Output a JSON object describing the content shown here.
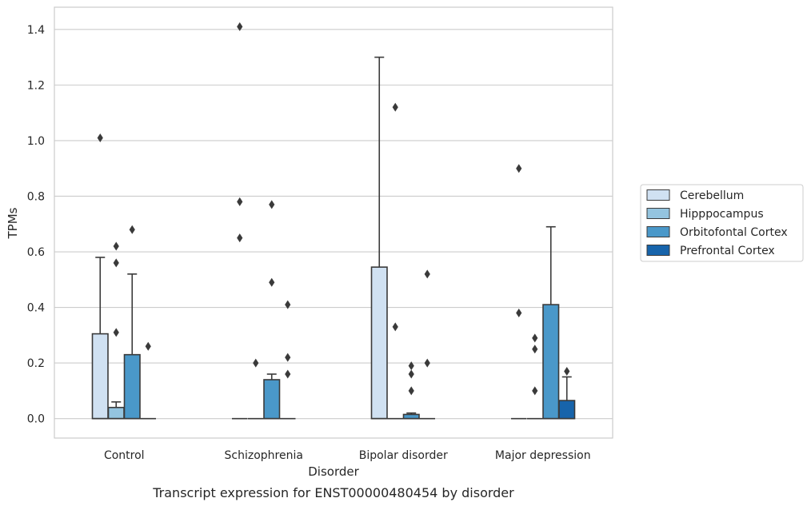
{
  "chart_data": {
    "type": "boxplot",
    "caption": "Transcript expression for ENST00000480454 by disorder",
    "xlabel": "Disorder",
    "ylabel": "TPMs",
    "ylim": [
      -0.07,
      1.48
    ],
    "yticks": [
      0.0,
      0.2,
      0.4,
      0.6,
      0.8,
      1.0,
      1.2,
      1.4
    ],
    "ytick_labels": [
      "0.0",
      "0.2",
      "0.4",
      "0.6",
      "0.8",
      "1.0",
      "1.2",
      "1.4"
    ],
    "grid": "horizontal",
    "legend_position": "right",
    "categories": [
      "Control",
      "Schizophrenia",
      "Bipolar disorder",
      "Major depression"
    ],
    "series": [
      {
        "name": "Cerebellum",
        "color": "#d0e1f2",
        "boxes": [
          {
            "q1": 0.0,
            "median": 0.0,
            "q3": 0.305,
            "whisker_low": 0.0,
            "whisker_high": 0.58,
            "outliers": [
              1.01
            ]
          },
          {
            "q1": 0.0,
            "median": 0.0,
            "q3": 0.0,
            "whisker_low": 0.0,
            "whisker_high": 0.0,
            "outliers": [
              1.41,
              0.78,
              0.65
            ]
          },
          {
            "q1": 0.0,
            "median": 0.0,
            "q3": 0.545,
            "whisker_low": 0.0,
            "whisker_high": 1.3,
            "outliers": []
          },
          {
            "q1": 0.0,
            "median": 0.0,
            "q3": 0.0,
            "whisker_low": 0.0,
            "whisker_high": 0.0,
            "outliers": [
              0.9,
              0.38
            ]
          }
        ]
      },
      {
        "name": "Hipppocampus",
        "color": "#94c4df",
        "boxes": [
          {
            "q1": 0.0,
            "median": 0.0,
            "q3": 0.04,
            "whisker_low": 0.0,
            "whisker_high": 0.06,
            "outliers": [
              0.62,
              0.56,
              0.31
            ]
          },
          {
            "q1": 0.0,
            "median": 0.0,
            "q3": 0.0,
            "whisker_low": 0.0,
            "whisker_high": 0.0,
            "outliers": [
              0.2
            ]
          },
          {
            "q1": 0.0,
            "median": 0.0,
            "q3": 0.0,
            "whisker_low": 0.0,
            "whisker_high": 0.0,
            "outliers": [
              1.12,
              0.33
            ]
          },
          {
            "q1": 0.0,
            "median": 0.0,
            "q3": 0.0,
            "whisker_low": 0.0,
            "whisker_high": 0.0,
            "outliers": [
              0.29,
              0.25,
              0.1
            ]
          }
        ]
      },
      {
        "name": "Orbitofontal Cortex",
        "color": "#4a98c9",
        "boxes": [
          {
            "q1": 0.0,
            "median": 0.0,
            "q3": 0.23,
            "whisker_low": 0.0,
            "whisker_high": 0.52,
            "outliers": [
              0.68
            ]
          },
          {
            "q1": 0.0,
            "median": 0.0,
            "q3": 0.14,
            "whisker_low": 0.0,
            "whisker_high": 0.16,
            "outliers": [
              0.77,
              0.49
            ]
          },
          {
            "q1": 0.0,
            "median": 0.0,
            "q3": 0.015,
            "whisker_low": 0.0,
            "whisker_high": 0.02,
            "outliers": [
              0.19,
              0.16,
              0.1
            ]
          },
          {
            "q1": 0.0,
            "median": 0.0,
            "q3": 0.41,
            "whisker_low": 0.0,
            "whisker_high": 0.69,
            "outliers": []
          }
        ]
      },
      {
        "name": "Prefrontal Cortex",
        "color": "#1764ab",
        "boxes": [
          {
            "q1": 0.0,
            "median": 0.0,
            "q3": 0.0,
            "whisker_low": 0.0,
            "whisker_high": 0.0,
            "outliers": [
              0.26
            ]
          },
          {
            "q1": 0.0,
            "median": 0.0,
            "q3": 0.0,
            "whisker_low": 0.0,
            "whisker_high": 0.0,
            "outliers": [
              0.41,
              0.22,
              0.16
            ]
          },
          {
            "q1": 0.0,
            "median": 0.0,
            "q3": 0.0,
            "whisker_low": 0.0,
            "whisker_high": 0.0,
            "outliers": [
              0.52,
              0.2
            ]
          },
          {
            "q1": 0.0,
            "median": 0.0,
            "q3": 0.065,
            "whisker_low": 0.0,
            "whisker_high": 0.15,
            "outliers": [
              0.17
            ]
          }
        ]
      }
    ]
  }
}
